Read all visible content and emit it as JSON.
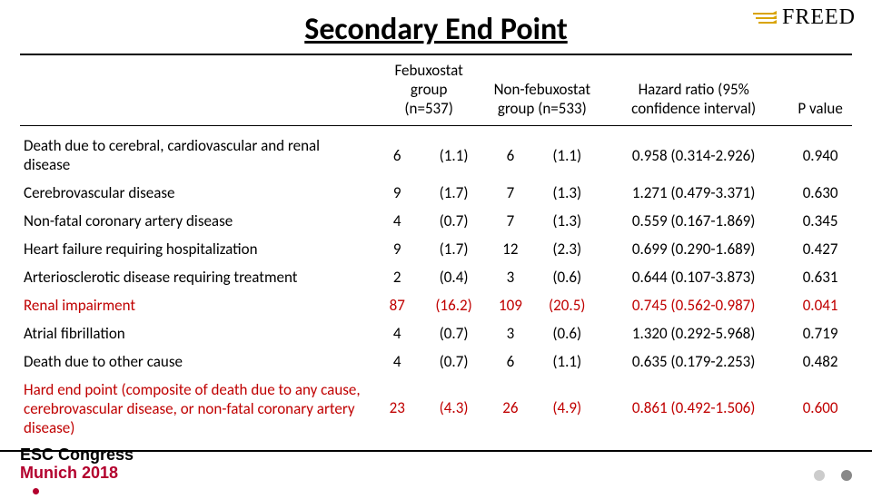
{
  "brand": {
    "text": "FREED",
    "bar_color": "#d9a400"
  },
  "title": "Secondary End Point",
  "headers": {
    "feb": "Febuxostat group\n(n=537)",
    "nonfeb": "Non-febuxostat\ngroup (n=533)",
    "hazard": "Hazard ratio (95% confidence interval)",
    "pvalue": "P value"
  },
  "rows": [
    {
      "label": "Death due to cerebral, cardiovascular and renal disease",
      "justify": true,
      "red": false,
      "feb_n": "6",
      "feb_p": "(1.1)",
      "nf_n": "6",
      "nf_p": "(1.1)",
      "hr": "0.958 (0.314-2.926)",
      "p": "0.940"
    },
    {
      "label": "Cerebrovascular disease",
      "justify": false,
      "red": false,
      "feb_n": "9",
      "feb_p": "(1.7)",
      "nf_n": "7",
      "nf_p": "(1.3)",
      "hr": "1.271 (0.479-3.371)",
      "p": "0.630"
    },
    {
      "label": "Non-fatal coronary artery disease",
      "justify": false,
      "red": false,
      "feb_n": "4",
      "feb_p": "(0.7)",
      "nf_n": "7",
      "nf_p": "(1.3)",
      "hr": "0.559 (0.167-1.869)",
      "p": "0.345"
    },
    {
      "label": "Heart failure requiring hospitalization",
      "justify": false,
      "red": false,
      "feb_n": "9",
      "feb_p": "(1.7)",
      "nf_n": "12",
      "nf_p": "(2.3)",
      "hr": "0.699 (0.290-1.689)",
      "p": "0.427"
    },
    {
      "label": "Arteriosclerotic disease requiring treatment",
      "justify": false,
      "red": false,
      "feb_n": "2",
      "feb_p": "(0.4)",
      "nf_n": "3",
      "nf_p": "(0.6)",
      "hr": "0.644 (0.107-3.873)",
      "p": "0.631"
    },
    {
      "label": "Renal impairment",
      "justify": false,
      "red": true,
      "feb_n": "87",
      "feb_p": "(16.2)",
      "nf_n": "109",
      "nf_p": "(20.5)",
      "hr": "0.745 (0.562-0.987)",
      "p": "0.041"
    },
    {
      "label": "Atrial fibrillation",
      "justify": false,
      "red": false,
      "feb_n": "4",
      "feb_p": "(0.7)",
      "nf_n": "3",
      "nf_p": "(0.6)",
      "hr": "1.320 (0.292-5.968)",
      "p": "0.719"
    },
    {
      "label": "Death due to other cause",
      "justify": false,
      "red": false,
      "feb_n": "4",
      "feb_p": "(0.7)",
      "nf_n": "6",
      "nf_p": "(1.1)",
      "hr": "0.635 (0.179-2.253)",
      "p": "0.482"
    },
    {
      "label": "Hard end point (composite of death due to any cause, cerebrovascular disease, or non-fatal coronary artery disease)",
      "justify": false,
      "red": true,
      "feb_n": "23",
      "feb_p": "(4.3)",
      "nf_n": "26",
      "nf_p": "(4.9)",
      "hr": "0.861 (0.492-1.506)",
      "p": "0.600"
    }
  ],
  "footer": {
    "line1": "ESC Congress",
    "line2": "Munich 2018"
  },
  "dot_colors": {
    "light": "#cccccc",
    "dark": "#888888",
    "accent": "#b3002d"
  }
}
